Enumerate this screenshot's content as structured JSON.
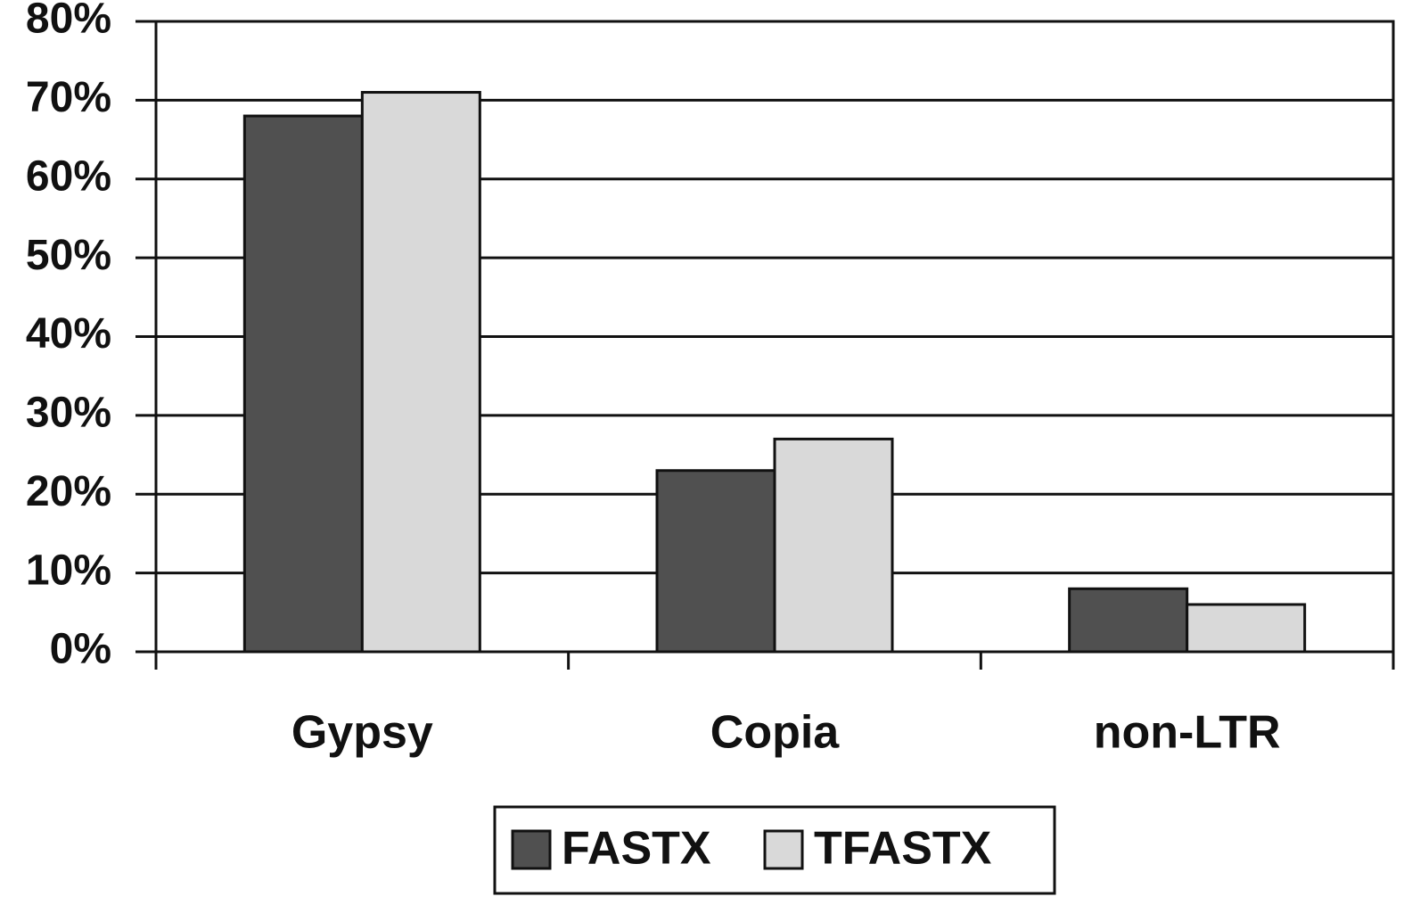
{
  "chart_data": {
    "type": "bar",
    "categories": [
      "Gypsy",
      "Copia",
      "non-LTR"
    ],
    "series": [
      {
        "name": "FASTX",
        "color": "#505050",
        "values": [
          68,
          23,
          8
        ]
      },
      {
        "name": "TFASTX",
        "color": "#d9d9d9",
        "values": [
          71,
          27,
          6
        ]
      }
    ],
    "ylim": [
      0,
      80
    ],
    "yticks": [
      {
        "value": 0,
        "label": "0%"
      },
      {
        "value": 10,
        "label": "10%"
      },
      {
        "value": 20,
        "label": "20%"
      },
      {
        "value": 30,
        "label": "30%"
      },
      {
        "value": 40,
        "label": "40%"
      },
      {
        "value": 50,
        "label": "50%"
      },
      {
        "value": 60,
        "label": "60%"
      },
      {
        "value": 70,
        "label": "70%"
      },
      {
        "value": 80,
        "label": "80%"
      }
    ],
    "grid": true,
    "legend": "bottom"
  }
}
